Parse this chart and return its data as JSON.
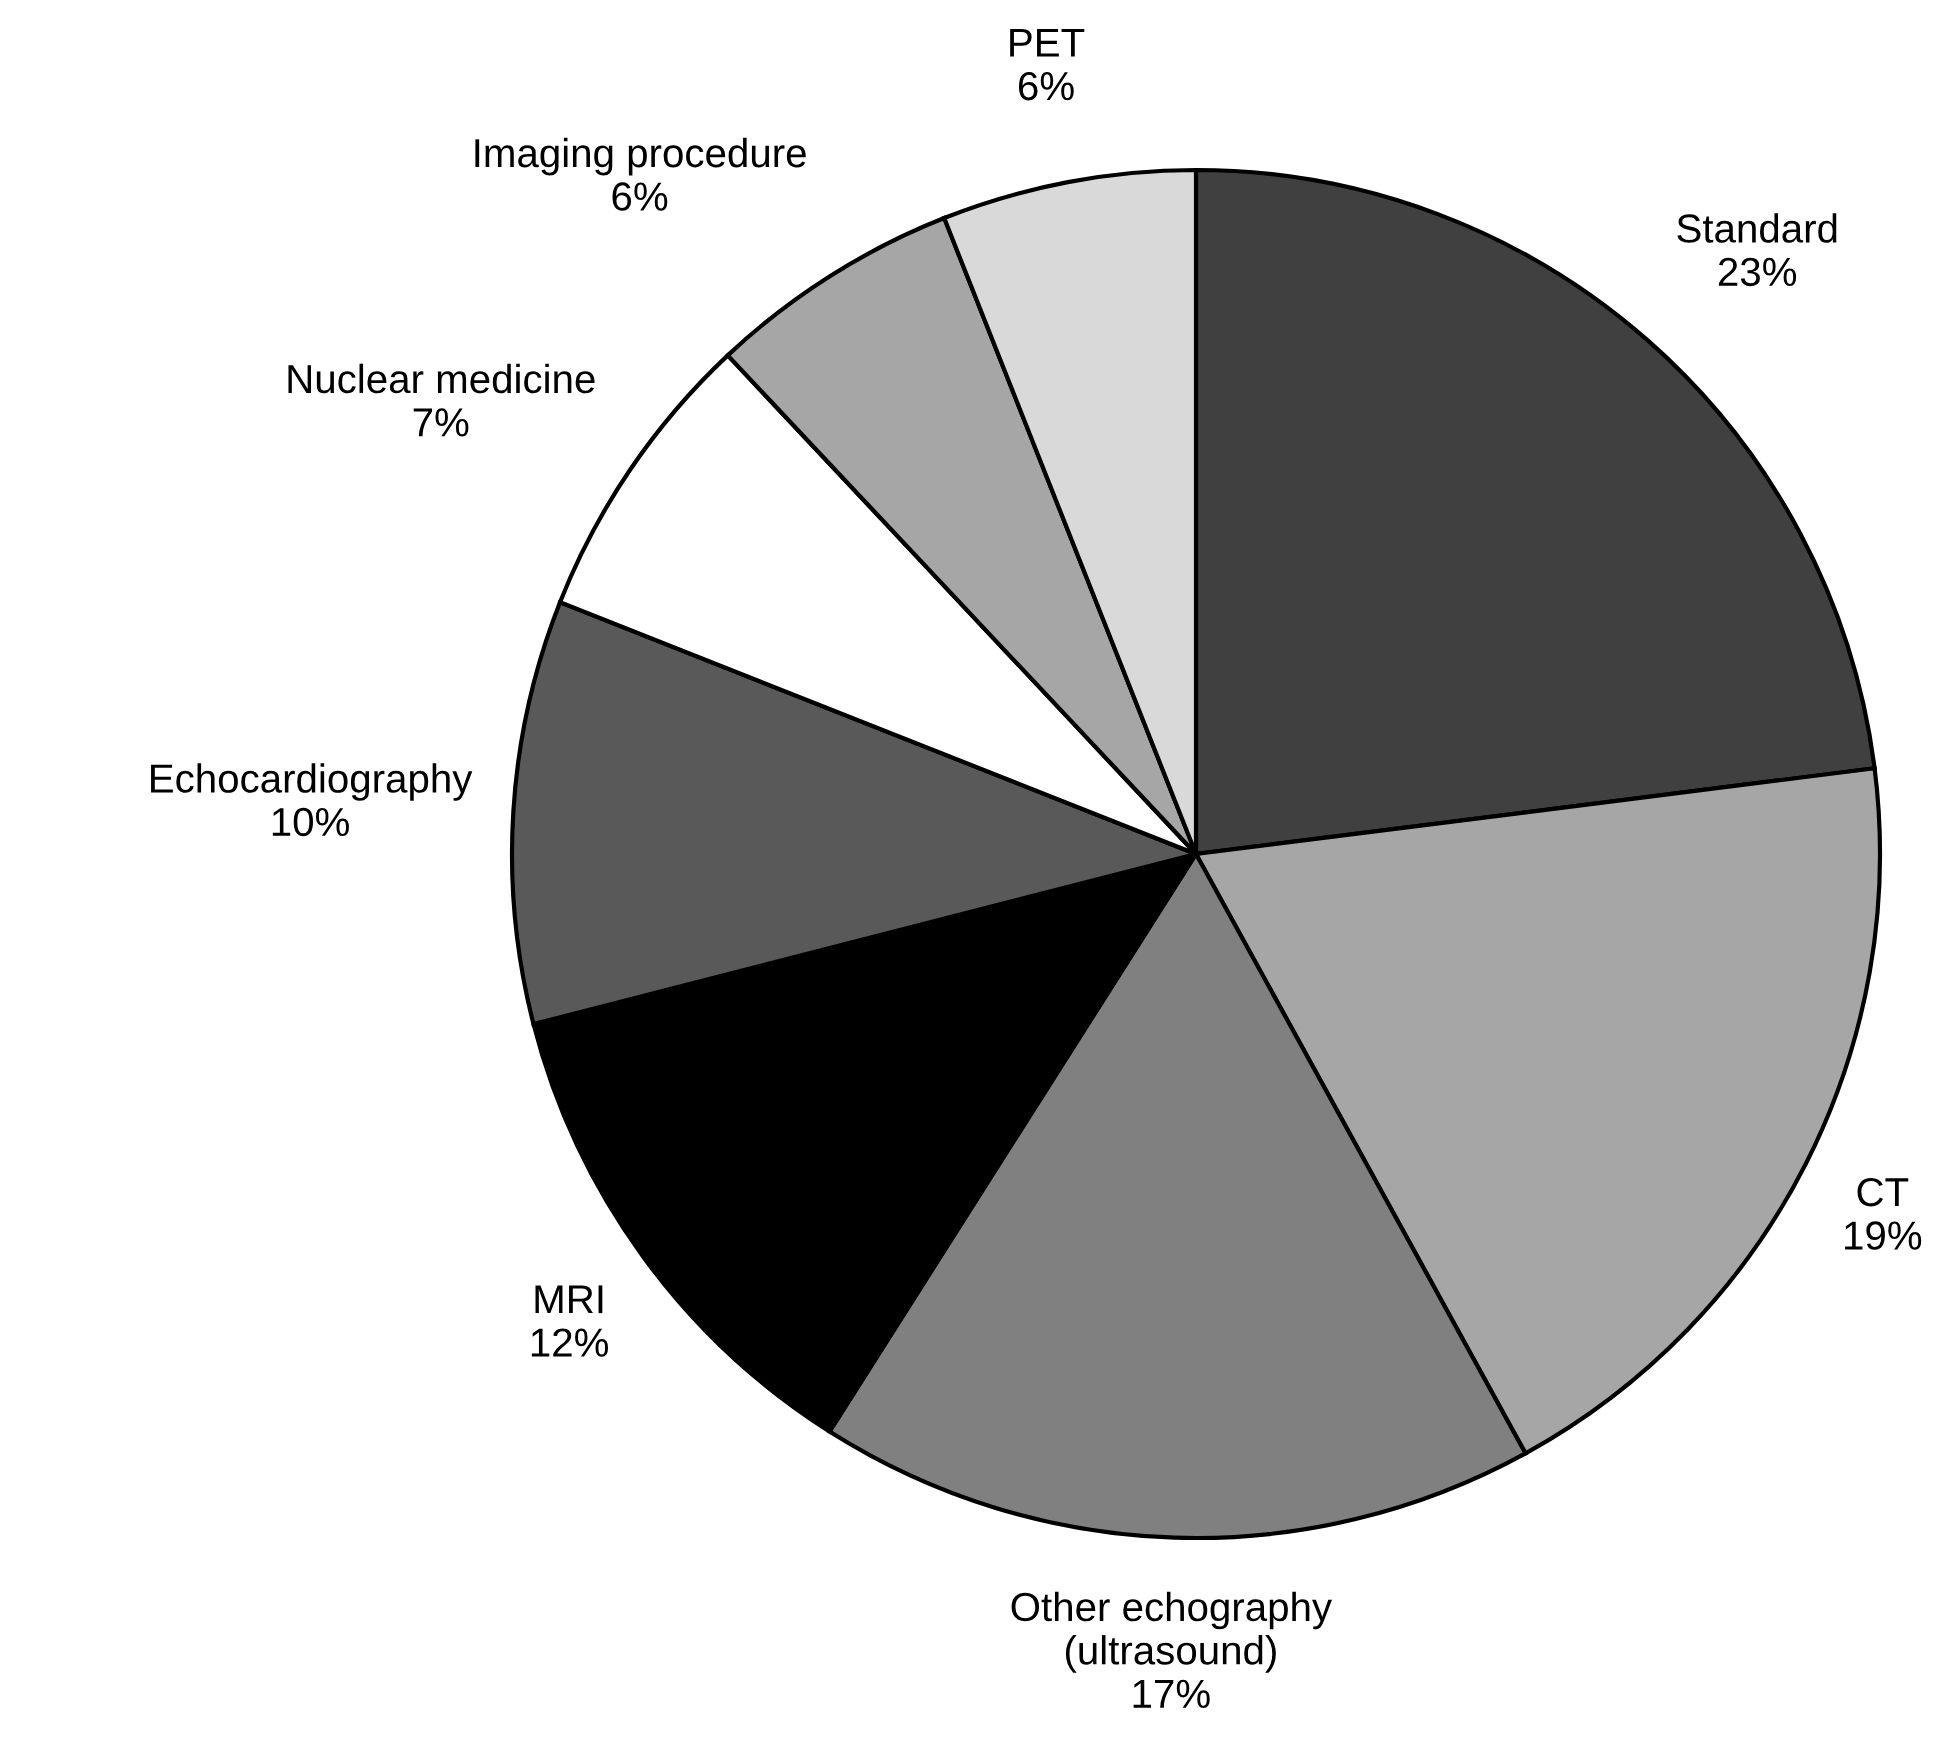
{
  "chart_data": {
    "type": "pie",
    "categories": [
      "Standard",
      "CT",
      "Other echography\n(ultrasound)",
      "MRI",
      "Echocardiography",
      "Nuclear medicine",
      "Imaging procedure",
      "PET"
    ],
    "values": [
      23,
      19,
      17,
      12,
      10,
      7,
      6,
      6
    ],
    "value_labels": [
      "23%",
      "19%",
      "17%",
      "12%",
      "10%",
      "7%",
      "6%",
      "6%"
    ],
    "colors": [
      "#404040",
      "#a6a6a6",
      "#808080",
      "#000000",
      "#595959",
      "#ffffff",
      "#a6a6a6",
      "#d9d9d9"
    ]
  }
}
